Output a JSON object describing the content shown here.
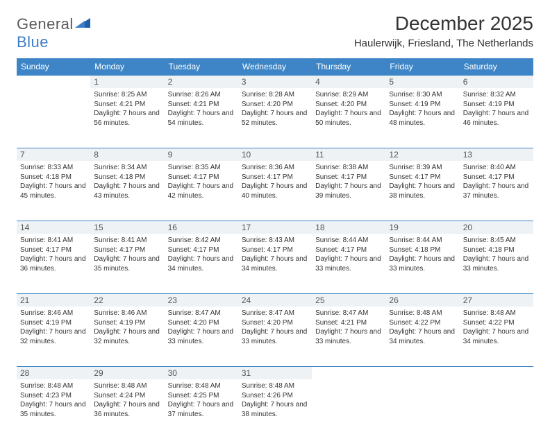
{
  "logo": {
    "text1": "General",
    "text2": "Blue"
  },
  "title": "December 2025",
  "location": "Haulerwijk, Friesland, The Netherlands",
  "colors": {
    "header_bg": "#3d85c6",
    "header_text": "#ffffff",
    "daynum_bg": "#eef2f5",
    "border": "#3d85c6",
    "text": "#333333",
    "logo_gray": "#5a5a5a",
    "logo_blue": "#3d7cc9"
  },
  "day_names": [
    "Sunday",
    "Monday",
    "Tuesday",
    "Wednesday",
    "Thursday",
    "Friday",
    "Saturday"
  ],
  "weeks": [
    [
      {
        "num": "",
        "sunrise": "",
        "sunset": "",
        "daylight": ""
      },
      {
        "num": "1",
        "sunrise": "Sunrise: 8:25 AM",
        "sunset": "Sunset: 4:21 PM",
        "daylight": "Daylight: 7 hours and 56 minutes."
      },
      {
        "num": "2",
        "sunrise": "Sunrise: 8:26 AM",
        "sunset": "Sunset: 4:21 PM",
        "daylight": "Daylight: 7 hours and 54 minutes."
      },
      {
        "num": "3",
        "sunrise": "Sunrise: 8:28 AM",
        "sunset": "Sunset: 4:20 PM",
        "daylight": "Daylight: 7 hours and 52 minutes."
      },
      {
        "num": "4",
        "sunrise": "Sunrise: 8:29 AM",
        "sunset": "Sunset: 4:20 PM",
        "daylight": "Daylight: 7 hours and 50 minutes."
      },
      {
        "num": "5",
        "sunrise": "Sunrise: 8:30 AM",
        "sunset": "Sunset: 4:19 PM",
        "daylight": "Daylight: 7 hours and 48 minutes."
      },
      {
        "num": "6",
        "sunrise": "Sunrise: 8:32 AM",
        "sunset": "Sunset: 4:19 PM",
        "daylight": "Daylight: 7 hours and 46 minutes."
      }
    ],
    [
      {
        "num": "7",
        "sunrise": "Sunrise: 8:33 AM",
        "sunset": "Sunset: 4:18 PM",
        "daylight": "Daylight: 7 hours and 45 minutes."
      },
      {
        "num": "8",
        "sunrise": "Sunrise: 8:34 AM",
        "sunset": "Sunset: 4:18 PM",
        "daylight": "Daylight: 7 hours and 43 minutes."
      },
      {
        "num": "9",
        "sunrise": "Sunrise: 8:35 AM",
        "sunset": "Sunset: 4:17 PM",
        "daylight": "Daylight: 7 hours and 42 minutes."
      },
      {
        "num": "10",
        "sunrise": "Sunrise: 8:36 AM",
        "sunset": "Sunset: 4:17 PM",
        "daylight": "Daylight: 7 hours and 40 minutes."
      },
      {
        "num": "11",
        "sunrise": "Sunrise: 8:38 AM",
        "sunset": "Sunset: 4:17 PM",
        "daylight": "Daylight: 7 hours and 39 minutes."
      },
      {
        "num": "12",
        "sunrise": "Sunrise: 8:39 AM",
        "sunset": "Sunset: 4:17 PM",
        "daylight": "Daylight: 7 hours and 38 minutes."
      },
      {
        "num": "13",
        "sunrise": "Sunrise: 8:40 AM",
        "sunset": "Sunset: 4:17 PM",
        "daylight": "Daylight: 7 hours and 37 minutes."
      }
    ],
    [
      {
        "num": "14",
        "sunrise": "Sunrise: 8:41 AM",
        "sunset": "Sunset: 4:17 PM",
        "daylight": "Daylight: 7 hours and 36 minutes."
      },
      {
        "num": "15",
        "sunrise": "Sunrise: 8:41 AM",
        "sunset": "Sunset: 4:17 PM",
        "daylight": "Daylight: 7 hours and 35 minutes."
      },
      {
        "num": "16",
        "sunrise": "Sunrise: 8:42 AM",
        "sunset": "Sunset: 4:17 PM",
        "daylight": "Daylight: 7 hours and 34 minutes."
      },
      {
        "num": "17",
        "sunrise": "Sunrise: 8:43 AM",
        "sunset": "Sunset: 4:17 PM",
        "daylight": "Daylight: 7 hours and 34 minutes."
      },
      {
        "num": "18",
        "sunrise": "Sunrise: 8:44 AM",
        "sunset": "Sunset: 4:17 PM",
        "daylight": "Daylight: 7 hours and 33 minutes."
      },
      {
        "num": "19",
        "sunrise": "Sunrise: 8:44 AM",
        "sunset": "Sunset: 4:18 PM",
        "daylight": "Daylight: 7 hours and 33 minutes."
      },
      {
        "num": "20",
        "sunrise": "Sunrise: 8:45 AM",
        "sunset": "Sunset: 4:18 PM",
        "daylight": "Daylight: 7 hours and 33 minutes."
      }
    ],
    [
      {
        "num": "21",
        "sunrise": "Sunrise: 8:46 AM",
        "sunset": "Sunset: 4:19 PM",
        "daylight": "Daylight: 7 hours and 32 minutes."
      },
      {
        "num": "22",
        "sunrise": "Sunrise: 8:46 AM",
        "sunset": "Sunset: 4:19 PM",
        "daylight": "Daylight: 7 hours and 32 minutes."
      },
      {
        "num": "23",
        "sunrise": "Sunrise: 8:47 AM",
        "sunset": "Sunset: 4:20 PM",
        "daylight": "Daylight: 7 hours and 33 minutes."
      },
      {
        "num": "24",
        "sunrise": "Sunrise: 8:47 AM",
        "sunset": "Sunset: 4:20 PM",
        "daylight": "Daylight: 7 hours and 33 minutes."
      },
      {
        "num": "25",
        "sunrise": "Sunrise: 8:47 AM",
        "sunset": "Sunset: 4:21 PM",
        "daylight": "Daylight: 7 hours and 33 minutes."
      },
      {
        "num": "26",
        "sunrise": "Sunrise: 8:48 AM",
        "sunset": "Sunset: 4:22 PM",
        "daylight": "Daylight: 7 hours and 34 minutes."
      },
      {
        "num": "27",
        "sunrise": "Sunrise: 8:48 AM",
        "sunset": "Sunset: 4:22 PM",
        "daylight": "Daylight: 7 hours and 34 minutes."
      }
    ],
    [
      {
        "num": "28",
        "sunrise": "Sunrise: 8:48 AM",
        "sunset": "Sunset: 4:23 PM",
        "daylight": "Daylight: 7 hours and 35 minutes."
      },
      {
        "num": "29",
        "sunrise": "Sunrise: 8:48 AM",
        "sunset": "Sunset: 4:24 PM",
        "daylight": "Daylight: 7 hours and 36 minutes."
      },
      {
        "num": "30",
        "sunrise": "Sunrise: 8:48 AM",
        "sunset": "Sunset: 4:25 PM",
        "daylight": "Daylight: 7 hours and 37 minutes."
      },
      {
        "num": "31",
        "sunrise": "Sunrise: 8:48 AM",
        "sunset": "Sunset: 4:26 PM",
        "daylight": "Daylight: 7 hours and 38 minutes."
      },
      {
        "num": "",
        "sunrise": "",
        "sunset": "",
        "daylight": ""
      },
      {
        "num": "",
        "sunrise": "",
        "sunset": "",
        "daylight": ""
      },
      {
        "num": "",
        "sunrise": "",
        "sunset": "",
        "daylight": ""
      }
    ]
  ]
}
